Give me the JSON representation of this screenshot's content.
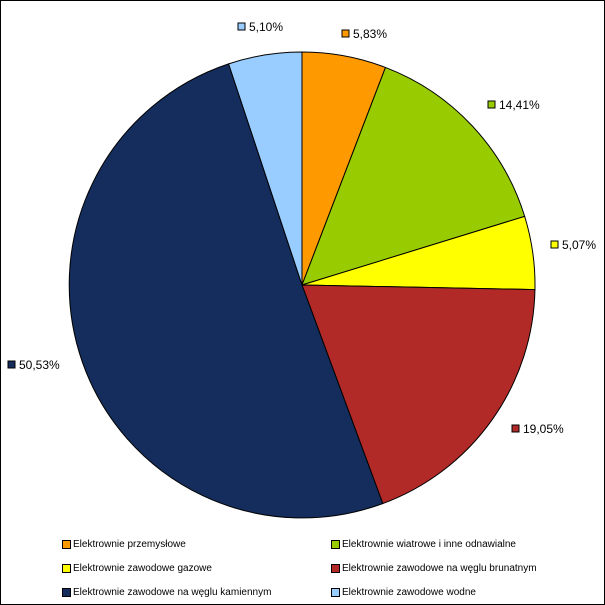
{
  "chart_data": {
    "type": "pie",
    "title": "",
    "legend_position": "bottom",
    "slices": [
      {
        "label": "Elektrownie przemysłowe",
        "value": 5.83,
        "value_label": "5,83%",
        "color": "#ff9900"
      },
      {
        "label": "Elektrownie wiatrowe i inne odnawialne",
        "value": 14.41,
        "value_label": "14,41%",
        "color": "#99cc00"
      },
      {
        "label": "Elektrownie zawodowe gazowe",
        "value": 5.07,
        "value_label": "5,07%",
        "color": "#ffff00"
      },
      {
        "label": "Elektrownie zawodowe na węglu brunatnym",
        "value": 19.05,
        "value_label": "19,05%",
        "color": "#b22a27"
      },
      {
        "label": "Elektrownie zawodowe na węglu kamiennym",
        "value": 50.53,
        "value_label": "50,53%",
        "color": "#142d5c"
      },
      {
        "label": "Elektrownie zawodowe wodne",
        "value": 5.1,
        "value_label": "5,10%",
        "color": "#99ccff"
      }
    ]
  }
}
